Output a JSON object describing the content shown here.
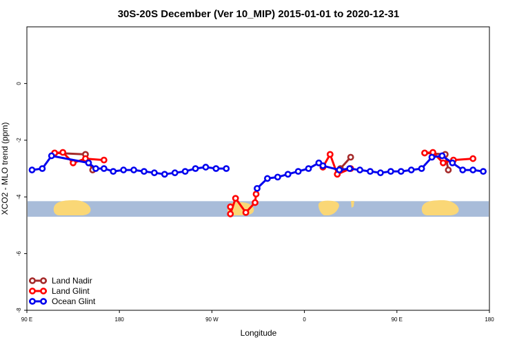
{
  "chart_data": {
    "type": "line",
    "title": "30S-20S December (Ver 10_MIP)   2015-01-01 to 2020-12-31",
    "xlabel": "Longitude",
    "ylabel": "XCO2 - MLO trend (ppm)",
    "xlim": [
      90,
      540
    ],
    "ylim": [
      -8,
      2
    ],
    "x_ticks": [
      {
        "value": 90,
        "label": "90 E"
      },
      {
        "value": 180,
        "label": "180"
      },
      {
        "value": 270,
        "label": "90 W"
      },
      {
        "value": 360,
        "label": "0"
      },
      {
        "value": 450,
        "label": "90 E"
      },
      {
        "value": 540,
        "label": "180"
      }
    ],
    "y_ticks": [
      {
        "value": 0,
        "label": "0"
      },
      {
        "value": -2,
        "label": "-2"
      },
      {
        "value": -4,
        "label": "-4"
      },
      {
        "value": -6,
        "label": "-6"
      },
      {
        "value": -8,
        "label": "-8"
      }
    ],
    "grid": false,
    "legend_position": "bottom-left",
    "map_strip": {
      "y_range": [
        -4.7,
        -4.15
      ],
      "ocean_color": "#a8bcd9",
      "land_color": "#fad776"
    },
    "series": [
      {
        "name": "Land Nadir",
        "color": "#a52a2a",
        "segments": [
          [
            [
              117,
              -2.45
            ],
            [
              147,
              -2.5
            ],
            [
              154,
              -3.05
            ]
          ],
          [
            [
              395,
              -3.0
            ],
            [
              405,
              -2.6
            ]
          ],
          [
            [
              477,
              -2.45
            ],
            [
              497,
              -2.5
            ],
            [
              500,
              -3.05
            ]
          ]
        ]
      },
      {
        "name": "Land Glint",
        "color": "#ff0000",
        "segments": [
          [
            [
              117,
              -2.45
            ],
            [
              125,
              -2.43
            ],
            [
              135,
              -2.8
            ],
            [
              147,
              -2.65
            ],
            [
              165,
              -2.7
            ]
          ],
          [
            [
              288,
              -4.35
            ],
            [
              288,
              -4.6
            ],
            [
              293,
              -4.05
            ],
            [
              303,
              -4.55
            ],
            [
              312,
              -4.2
            ],
            [
              313,
              -3.9
            ]
          ],
          [
            [
              378,
              -2.95
            ],
            [
              385,
              -2.5
            ],
            [
              392,
              -3.2
            ],
            [
              405,
              -3.0
            ]
          ],
          [
            [
              477,
              -2.45
            ],
            [
              485,
              -2.43
            ],
            [
              495,
              -2.8
            ],
            [
              505,
              -2.7
            ],
            [
              524,
              -2.65
            ]
          ]
        ]
      },
      {
        "name": "Ocean Glint",
        "color": "#0000ee",
        "segments": [
          [
            [
              95,
              -3.05
            ],
            [
              105,
              -3.0
            ],
            [
              114,
              -2.55
            ],
            [
              150,
              -2.8
            ],
            [
              157,
              -3.0
            ],
            [
              165,
              -3.0
            ],
            [
              174,
              -3.1
            ],
            [
              184,
              -3.05
            ],
            [
              194,
              -3.05
            ],
            [
              204,
              -3.1
            ],
            [
              214,
              -3.15
            ],
            [
              224,
              -3.2
            ],
            [
              234,
              -3.15
            ],
            [
              244,
              -3.1
            ],
            [
              254,
              -3.0
            ],
            [
              264,
              -2.95
            ],
            [
              274,
              -3.0
            ],
            [
              284,
              -3.0
            ]
          ],
          [
            [
              314,
              -3.7
            ],
            [
              324,
              -3.35
            ],
            [
              334,
              -3.3
            ],
            [
              344,
              -3.2
            ],
            [
              354,
              -3.1
            ],
            [
              364,
              -3.0
            ],
            [
              374,
              -2.8
            ],
            [
              378,
              -2.9
            ],
            [
              394,
              -3.05
            ],
            [
              404,
              -3.0
            ],
            [
              414,
              -3.05
            ],
            [
              424,
              -3.1
            ],
            [
              434,
              -3.15
            ],
            [
              444,
              -3.1
            ],
            [
              454,
              -3.1
            ],
            [
              464,
              -3.05
            ],
            [
              474,
              -3.0
            ],
            [
              484,
              -2.6
            ],
            [
              494,
              -2.55
            ],
            [
              504,
              -2.8
            ],
            [
              514,
              -3.05
            ],
            [
              524,
              -3.05
            ],
            [
              534,
              -3.1
            ]
          ]
        ]
      }
    ]
  }
}
